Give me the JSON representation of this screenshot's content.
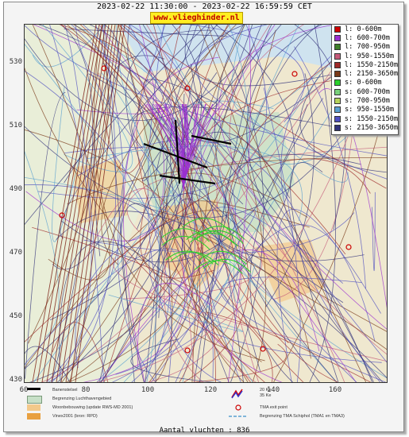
{
  "header": {
    "time_range": "2023-02-22 11:30:00 - 2023-02-22 16:59:59 CET",
    "site": "www.vlieghinder.nl"
  },
  "axes": {
    "y_ticks": [
      "530",
      "510",
      "490",
      "470",
      "450",
      "430"
    ],
    "x_ticks": [
      "60",
      "80",
      "100",
      "120",
      "140",
      "160"
    ]
  },
  "legend": [
    {
      "label": "l: 0-600m",
      "color": "#d00000"
    },
    {
      "label": "l: 600-700m",
      "color": "#9b2fd0"
    },
    {
      "label": "l: 700-950m",
      "color": "#3f7f2a"
    },
    {
      "label": "l: 950-1550m",
      "color": "#c45a7a"
    },
    {
      "label": "l: 1550-2150m",
      "color": "#9e2a2a"
    },
    {
      "label": "l: 2150-3650m",
      "color": "#7a3a1a"
    },
    {
      "label": "s: 0-600m",
      "color": "#2bd02b"
    },
    {
      "label": "s: 600-700m",
      "color": "#7ad07a"
    },
    {
      "label": "s: 700-950m",
      "color": "#b6d35a"
    },
    {
      "label": "s: 950-1550m",
      "color": "#5aa0d0"
    },
    {
      "label": "s: 1550-2150m",
      "color": "#4f4fc0"
    },
    {
      "label": "s: 2150-3650m",
      "color": "#32327a"
    }
  ],
  "map_legend": {
    "runway": "Banenstelsel",
    "airport_area": "Begrenzing Luchthavengebied",
    "residential": "Woonbebouwing (update RWS-MD 2001)",
    "vinex": "Vinex2001 (bron: RPD)",
    "kv20": "20 Ke",
    "kv35": "35 Ke",
    "tma_exit": "TMA exit point",
    "tma_boundary": "Begrenzing TMA Schiphol  (TMA1 en TMA3)"
  },
  "footer": {
    "count_text": "Aantal vluchten : 836"
  }
}
